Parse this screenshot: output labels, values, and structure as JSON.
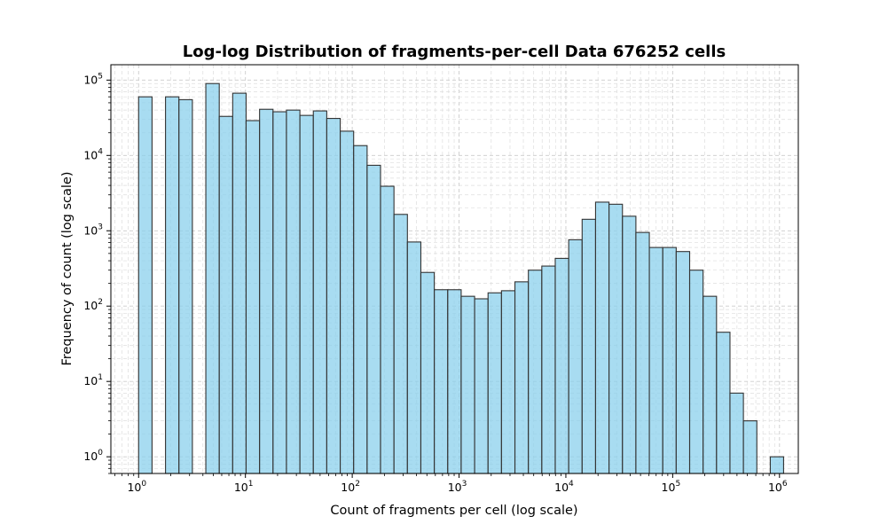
{
  "chart_data": {
    "type": "bar",
    "title": "Log-log Distribution of fragments-per-cell Data 676252 cells",
    "xlabel": "Count of fragments per cell (log scale)",
    "ylabel": "Frequency of count (log scale)",
    "x_scale": "log",
    "y_scale": "log",
    "xlim": [
      0.55,
      1500000
    ],
    "ylim": [
      0.6,
      160000
    ],
    "x_ticks": [
      {
        "base": "10",
        "exp": "0",
        "value": 1
      },
      {
        "base": "10",
        "exp": "1",
        "value": 10
      },
      {
        "base": "10",
        "exp": "2",
        "value": 100
      },
      {
        "base": "10",
        "exp": "3",
        "value": 1000
      },
      {
        "base": "10",
        "exp": "4",
        "value": 10000
      },
      {
        "base": "10",
        "exp": "5",
        "value": 100000
      },
      {
        "base": "10",
        "exp": "6",
        "value": 1000000
      }
    ],
    "y_ticks": [
      {
        "base": "10",
        "exp": "0",
        "value": 1
      },
      {
        "base": "10",
        "exp": "1",
        "value": 10
      },
      {
        "base": "10",
        "exp": "2",
        "value": 100
      },
      {
        "base": "10",
        "exp": "3",
        "value": 1000
      },
      {
        "base": "10",
        "exp": "4",
        "value": 10000
      },
      {
        "base": "10",
        "exp": "5",
        "value": 100000
      }
    ],
    "grid": true,
    "bar_color": "#87ceeb",
    "edge_color": "#333333",
    "bin_edges": [
      1.0,
      1.336,
      1.786,
      2.385,
      3.187,
      4.258,
      5.689,
      7.601,
      10.15,
      13.57,
      18.13,
      24.22,
      32.36,
      43.23,
      57.76,
      77.17,
      103.1,
      137.8,
      184.0,
      245.9,
      328.5,
      438.9,
      586.4,
      783.5,
      1046.8,
      1398.6,
      1868.6,
      2496.5,
      3335.4,
      4456.3,
      5953.9,
      7954.8,
      10628.0,
      14200.0,
      18970.0,
      25350.0,
      33870.0,
      45250.0,
      60450.0,
      80770.0,
      107900.0,
      144200.0,
      192600.0,
      257400.0,
      343900.0,
      459400.0,
      613800.0,
      820100.0
    ],
    "counts": [
      60000,
      0,
      60000,
      55000,
      0,
      90000,
      33000,
      67000,
      29000,
      41000,
      38000,
      40000,
      34000,
      39000,
      31000,
      21000,
      13500,
      7400,
      3900,
      1650,
      710,
      280,
      165,
      165,
      135,
      125,
      150,
      160,
      210,
      300,
      340,
      430,
      760,
      1420,
      2400,
      2250,
      1560,
      950,
      600,
      600,
      530,
      300,
      135,
      45,
      7,
      3,
      0,
      1
    ]
  }
}
